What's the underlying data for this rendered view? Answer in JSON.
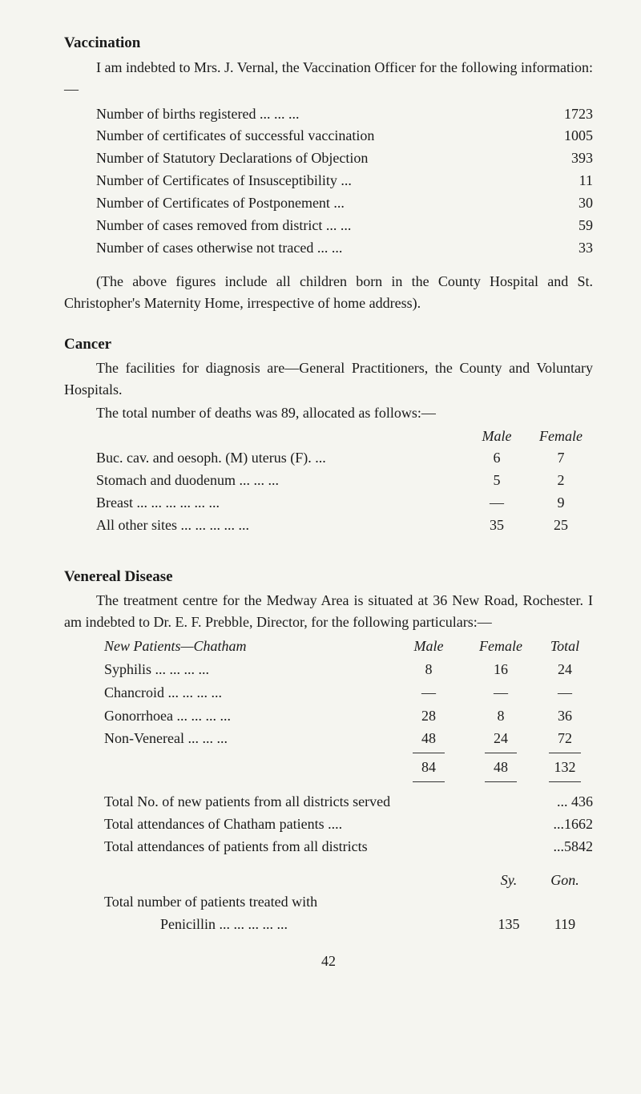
{
  "vaccination": {
    "heading": "Vaccination",
    "intro": "I am indebted to Mrs. J. Vernal, the Vaccination Officer for the following information:—",
    "stats": [
      {
        "label": "Number of births registered        ...        ...        ...",
        "value": "1723"
      },
      {
        "label": "Number of certificates of successful vaccination",
        "value": "1005"
      },
      {
        "label": "Number of Statutory Declarations of Objection",
        "value": "393"
      },
      {
        "label": "Number of Certificates of Insusceptibility        ...",
        "value": "11"
      },
      {
        "label": "Number of Certificates of Postponement           ...",
        "value": "30"
      },
      {
        "label": "Number of cases removed from district ...        ...",
        "value": "59"
      },
      {
        "label": "Number of cases otherwise not traced     ...      ...",
        "value": "33"
      }
    ],
    "note": "(The above figures include all children born in the County Hospital and St. Christopher's Maternity Home, irrespective of home address)."
  },
  "cancer": {
    "heading": "Cancer",
    "intro": "The facilities for diagnosis are—General Practitioners, the County and Voluntary Hospitals.",
    "line2": "The total number of deaths was 89, allocated as follows:—",
    "cols": {
      "male": "Male",
      "female": "Female"
    },
    "rows": [
      {
        "label": "Buc. cav. and oesoph. (M) uterus (F).         ...",
        "male": "6",
        "female": "7"
      },
      {
        "label": "Stomach and duodenum           ...        ...        ...",
        "male": "5",
        "female": "2"
      },
      {
        "label": "Breast     ...        ...        ...        ...        ...        ...",
        "male": "—",
        "female": "9"
      },
      {
        "label": "All other sites     ...        ...        ...        ...        ...",
        "male": "35",
        "female": "25"
      }
    ]
  },
  "venereal": {
    "heading": "Venereal Disease",
    "intro": "The treatment centre for the Medway Area is situated at 36 New Road, Rochester.   I am indebted to Dr. E. F. Prebble, Director, for the following particulars:—",
    "header": {
      "label": "New Patients—Chatham",
      "male": "Male",
      "female": "Female",
      "total": "Total"
    },
    "rows": [
      {
        "label": "Syphilis          ...        ...        ...        ...",
        "male": "8",
        "female": "16",
        "total": "24"
      },
      {
        "label": "Chancroid      ...        ...        ...        ...",
        "male": "—",
        "female": "—",
        "total": "—"
      },
      {
        "label": "Gonorrhoea ...        ...        ...        ...",
        "male": "28",
        "female": "8",
        "total": "36"
      },
      {
        "label": "Non-Venereal           ...        ...        ...",
        "male": "48",
        "female": "24",
        "total": "72"
      }
    ],
    "sum": {
      "label": "",
      "male": "84",
      "female": "48",
      "total": "132"
    },
    "totals": [
      {
        "label": "Total No. of new patients from all districts served",
        "value": "... 436"
      },
      {
        "label": "Total attendances of Chatham patients             ....",
        "value": "...1662"
      },
      {
        "label": "Total attendances of patients from all districts",
        "value": "...5842"
      }
    ],
    "penHeader": {
      "sy": "Sy.",
      "gon": "Gon."
    },
    "penLabel1": "Total   number   of   patients   treated   with",
    "penLabel2": "Penicillin ...        ...        ...        ...        ...",
    "penVals": {
      "sy": "135",
      "gon": "119"
    }
  },
  "pageNumber": "42"
}
